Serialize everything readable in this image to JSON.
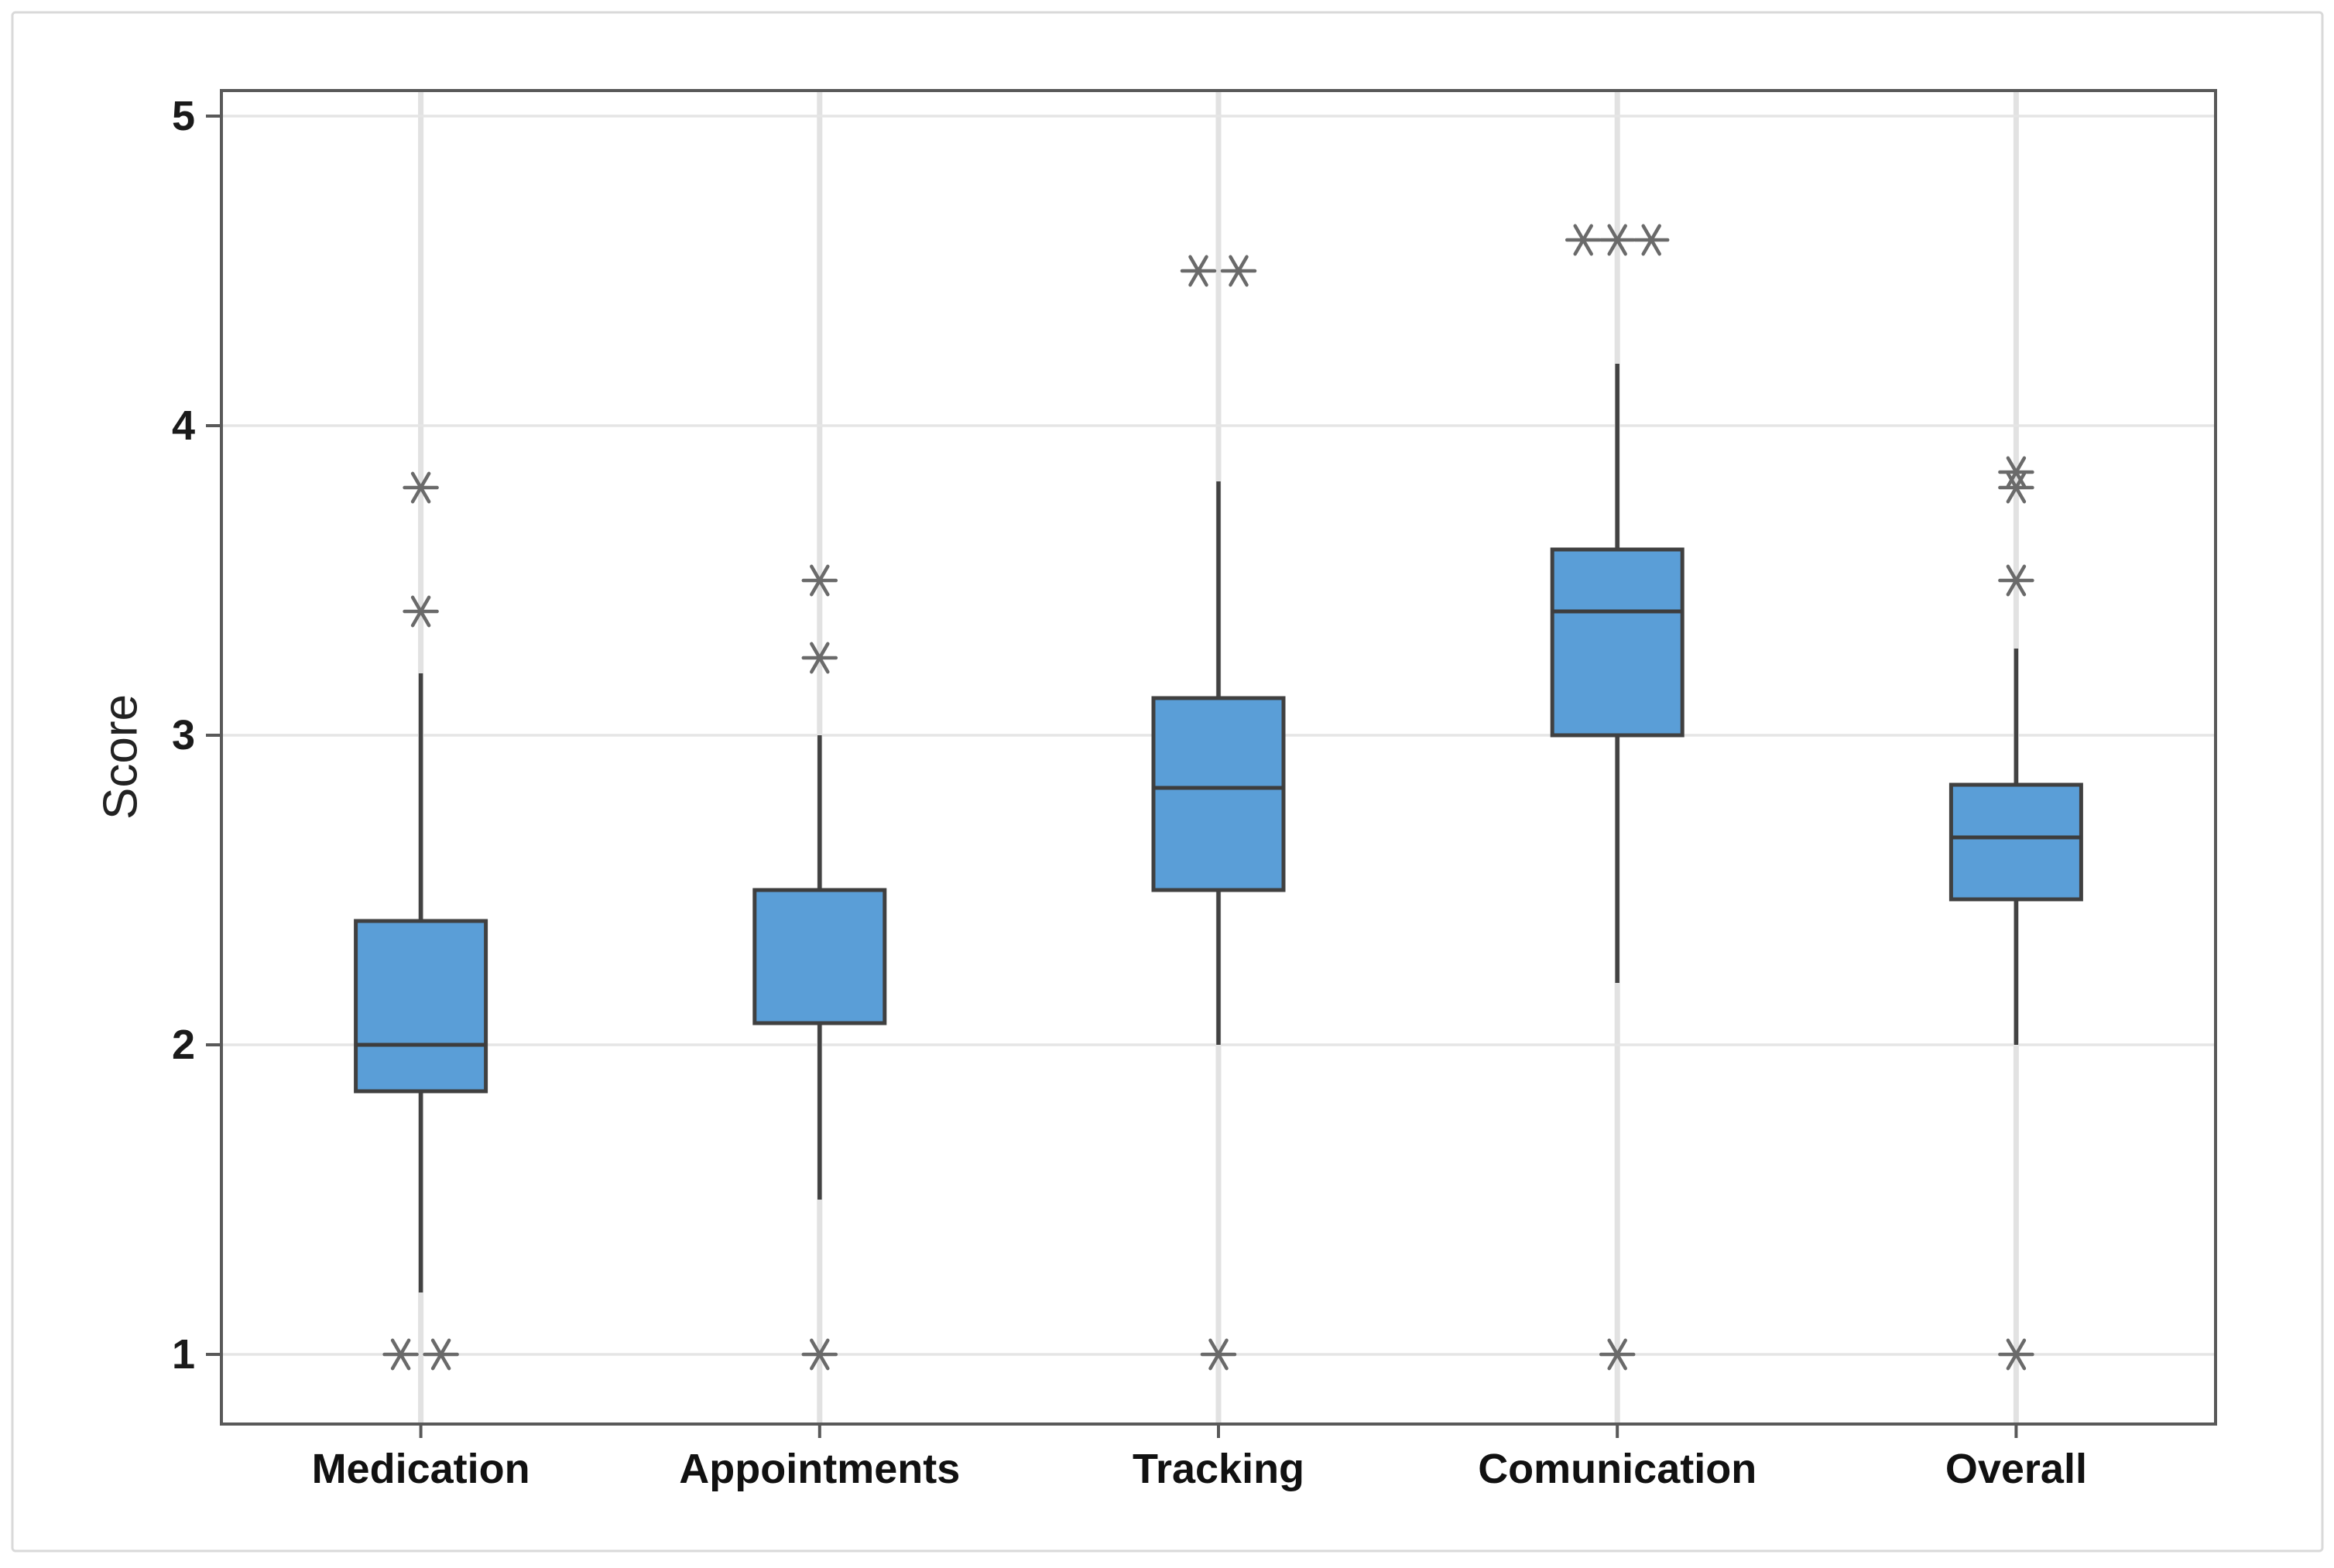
{
  "figure": {
    "background": "#FFFFFF",
    "border_color": "#D9D9D9"
  },
  "chart_data": {
    "type": "boxplot",
    "title": "",
    "xlabel": "",
    "ylabel": "Score",
    "y_ticks": [
      1,
      2,
      3,
      4,
      5
    ],
    "y_tick_labels": [
      "1",
      "2",
      "3",
      "4",
      "5"
    ],
    "y_range": [
      0.78,
      5.08
    ],
    "grid": "horizontal gridlines at each tick plus light vertical line at each category center",
    "legend": "none",
    "categories": [
      "Medication",
      "Appointments",
      "Tracking",
      "Comunication",
      "Overall"
    ],
    "boxes": [
      {
        "label": "Medication",
        "whisker_low": 1.2,
        "q1": 1.85,
        "median": 2.0,
        "q3": 2.4,
        "whisker_high": 3.2,
        "outliers_high": [
          3.8,
          3.4
        ],
        "outliers_low": [
          1.0,
          1.0
        ]
      },
      {
        "label": "Appointments",
        "whisker_low": 1.5,
        "q1": 2.07,
        "median": 2.5,
        "q3": 2.5,
        "whisker_high": 3.0,
        "outliers_high": [
          3.5,
          3.25
        ],
        "outliers_low": [
          1.0
        ]
      },
      {
        "label": "Tracking",
        "whisker_low": 2.0,
        "q1": 2.5,
        "median": 2.83,
        "q3": 3.12,
        "whisker_high": 3.82,
        "outliers_high": [
          4.5,
          4.5
        ],
        "outliers_low": [
          1.0
        ]
      },
      {
        "label": "Comunication",
        "whisker_low": 2.2,
        "q1": 3.0,
        "median": 3.4,
        "q3": 3.6,
        "whisker_high": 4.2,
        "outliers_high": [
          4.6,
          4.6,
          4.6
        ],
        "outliers_low": [
          1.0
        ]
      },
      {
        "label": "Overall",
        "whisker_low": 2.0,
        "q1": 2.47,
        "median": 2.67,
        "q3": 2.84,
        "whisker_high": 3.28,
        "outliers_high": [
          3.85,
          3.8,
          3.5
        ],
        "outliers_low": [
          1.0
        ]
      }
    ],
    "style": {
      "box_fill": "#5A9ED7",
      "box_border": "#404040",
      "whisker_color": "#424242",
      "median_color": "#3D3D3D",
      "outlier_color": "#6A6A6A",
      "gridline_color": "#E5E5E5",
      "category_stripe_color": "#E2E2E2",
      "axis_color": "#595959",
      "tick_label_color": "#1A1A1A",
      "category_label_color": "#111111",
      "axis_title_color": "#222222",
      "figure_border_color": "#D9D9D9",
      "background": "#FFFFFF"
    }
  }
}
